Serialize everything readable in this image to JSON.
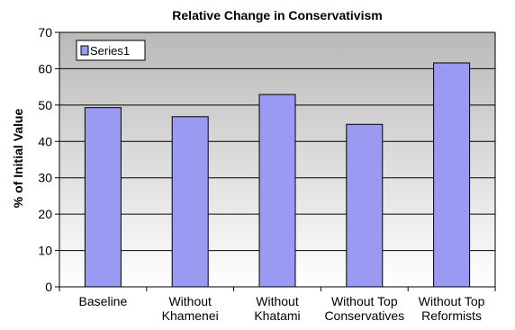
{
  "chart_data": {
    "type": "bar",
    "title": "Relative Change in Conservativism",
    "xlabel": "",
    "ylabel": "% of Initial Value",
    "categories": [
      [
        "Baseline"
      ],
      [
        "Without",
        "Khamenei"
      ],
      [
        "Without",
        "Khatami"
      ],
      [
        "Without Top",
        "Conservatives"
      ],
      [
        "Without Top",
        "Reformists"
      ]
    ],
    "series": [
      {
        "name": "Series1",
        "values": [
          49.3,
          46.8,
          52.9,
          44.7,
          61.6
        ]
      }
    ],
    "ylim": [
      0,
      70
    ],
    "yticks": [
      0,
      10,
      20,
      30,
      40,
      50,
      60,
      70
    ],
    "grid": true,
    "legend_position": "top-left",
    "colors": {
      "plot_background_top": "#b9b9b9",
      "plot_background_bottom": "#ffffff",
      "bar_fill": "#9a9af2",
      "bar_stroke": "#000000",
      "gridline": "#000000"
    }
  }
}
